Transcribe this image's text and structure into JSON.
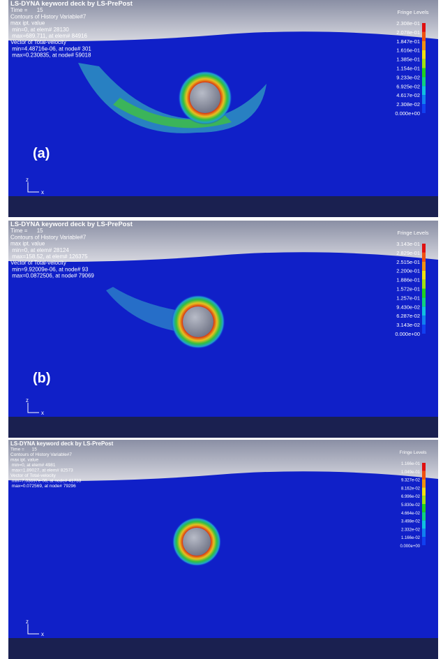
{
  "panels": [
    {
      "header": [
        "LS-DYNA keyword deck by LS-PrePost",
        "Time =      15",
        "Contours of History Variable#7",
        "max ipt. value",
        " min=0, at elem# 28130",
        " max=689.711, at elem# 84916",
        "Vector of Total-velocity",
        " min=4.48716e-06, at node# 301",
        " max=0.230835, at node# 59018"
      ],
      "fringe_title": "Fringe Levels",
      "fringe_levels": [
        "2.308e-01",
        "2.078e-01",
        "1.847e-01",
        "1.616e-01",
        "1.385e-01",
        "1.154e-01",
        "9.233e-02",
        "6.925e-02",
        "4.617e-02",
        "2.308e-02",
        "0.000e+00"
      ],
      "label": "(a)",
      "axis_z": "z",
      "axis_x": "x"
    },
    {
      "header": [
        "LS-DYNA keyword deck by LS-PrePost",
        "Time =      15",
        "Contours of History Variable#7",
        "max ipt. value",
        " min=0, at elem# 28124",
        " max=158.52, at elem# 126375",
        "Vector of Total-velocity",
        " min=9.92009e-06, at node# 93",
        " max=0.0872506, at node# 79069"
      ],
      "fringe_title": "Fringe Levels",
      "fringe_levels": [
        "3.143e-01",
        "2.829e-01",
        "2.515e-01",
        "2.200e-01",
        "1.886e-01",
        "1.572e-01",
        "1.257e-01",
        "9.430e-02",
        "6.287e-02",
        "3.143e-02",
        "0.000e+00"
      ],
      "label": "(b)",
      "axis_z": "z",
      "axis_x": "x"
    },
    {
      "header": [
        "LS-DYNA keyword deck by LS-PrePost",
        "Time =      15",
        "Contours of History Variable#7",
        "max ipt. value",
        " min=0, at elem# 4981",
        " max=1.89027, at elem# 82573",
        "Vector of Total-velocity",
        " min=7.03697e-06, at node# 41733",
        " max=0.072569, at node# 79296"
      ],
      "fringe_title": "Fringe Levels",
      "fringe_levels": [
        "1.166e-01",
        "1.049e-01",
        "9.327e-02",
        "8.162e-02",
        "6.996e-02",
        "5.830e-02",
        "4.664e-02",
        "3.498e-02",
        "2.332e-02",
        "1.166e-02",
        "0.000e+00"
      ],
      "axis_z": "z",
      "axis_x": "x"
    }
  ]
}
